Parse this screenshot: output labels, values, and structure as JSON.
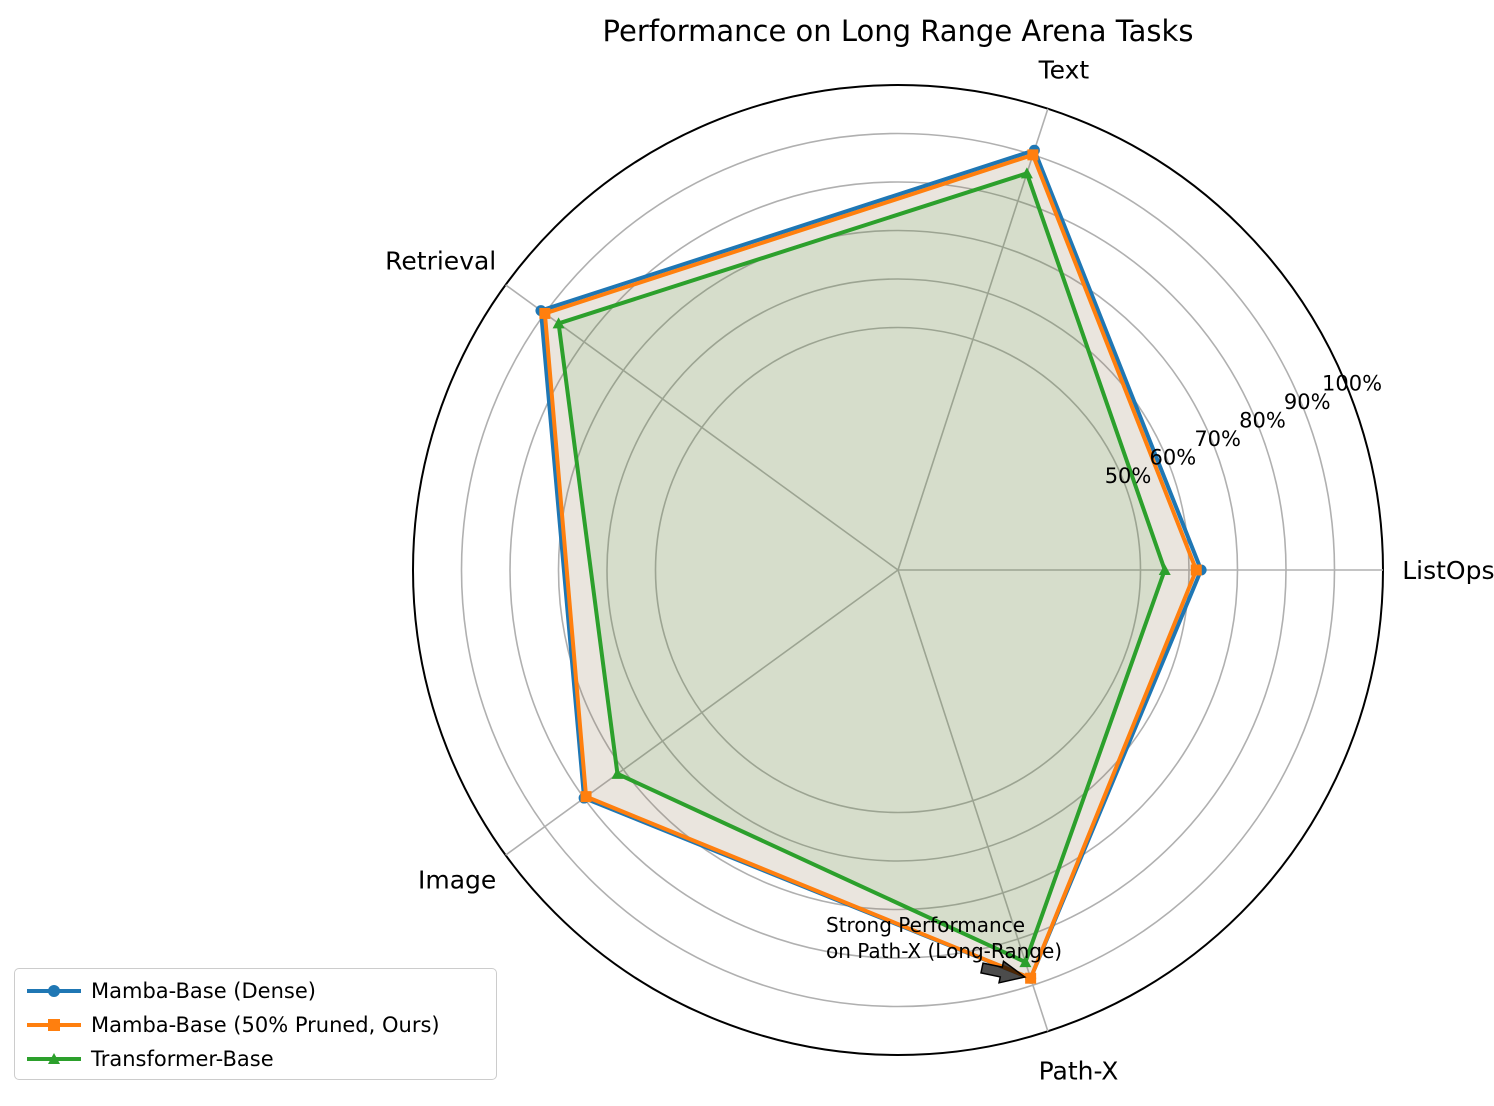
{
  "chart_data": {
    "type": "radar",
    "title": "Performance on Long Range Arena Tasks",
    "categories": [
      "ListOps",
      "Text",
      "Retrieval",
      "Image",
      "Path-X"
    ],
    "radial_ticks": [
      "50%",
      "60%",
      "70%",
      "80%",
      "90%",
      "100%"
    ],
    "radial_tick_values": [
      50,
      60,
      70,
      80,
      90,
      100
    ],
    "rlim": [
      0,
      100
    ],
    "grid": true,
    "legend_position": "lower-left",
    "series": [
      {
        "name": "Mamba-Base (Dense)",
        "color": "#1f77b4",
        "marker": "circle",
        "values": [
          62.5,
          91.0,
          91.0,
          80.0,
          88.5
        ]
      },
      {
        "name": "Mamba-Base (50% Pruned, Ours)",
        "color": "#ff7f0e",
        "marker": "square",
        "values": [
          61.5,
          90.0,
          90.0,
          79.5,
          88.5
        ]
      },
      {
        "name": "Transformer-Base",
        "color": "#2ca02c",
        "marker": "triangle",
        "values": [
          55.0,
          86.0,
          86.5,
          71.5,
          85.0
        ]
      }
    ],
    "annotation": {
      "text_line1": "Strong Performance",
      "text_line2": "on Path-X (Long-Range)",
      "category": "Path-X"
    }
  }
}
